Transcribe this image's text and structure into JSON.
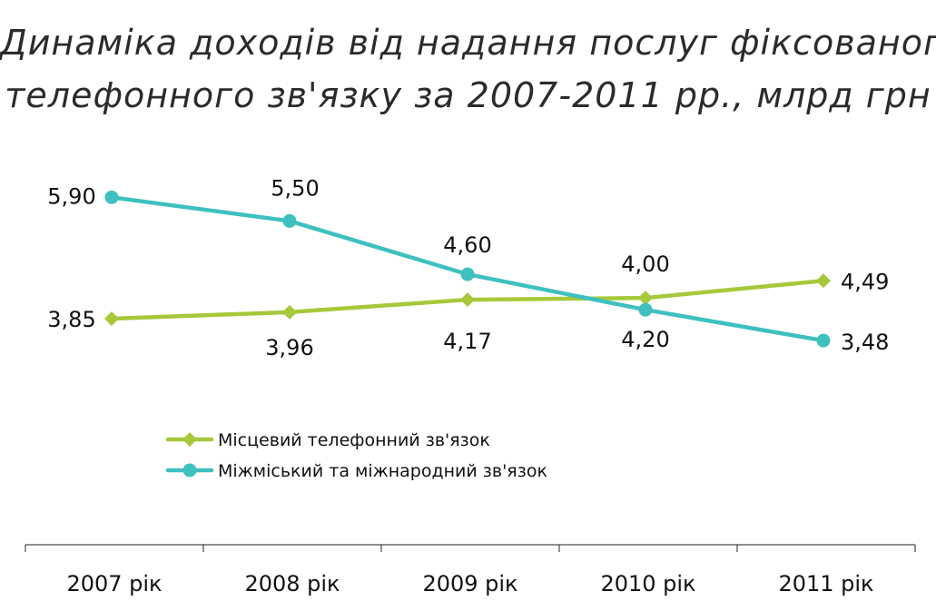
{
  "title_line1": "Динаміка доходів від надання послуг фіксованого",
  "title_line2": "телефонного зв'язку за 2007-2011 рр., млрд грн",
  "chart_data": {
    "type": "line",
    "categories": [
      "2007 рік",
      "2008 рік",
      "2009 рік",
      "2010 рік",
      "2011 рік"
    ],
    "series": [
      {
        "name": "Місцевий телефонний зв'язок",
        "values": [
          3.85,
          3.96,
          4.17,
          4.2,
          4.49
        ],
        "labels": [
          "3,85",
          "3,96",
          "4,17",
          "4,20",
          "4,49"
        ],
        "color": "#a6c83a",
        "marker": "diamond"
      },
      {
        "name": "Міжміський та міжнародний зв'язок",
        "values": [
          5.9,
          5.5,
          4.6,
          4.0,
          3.48
        ],
        "labels": [
          "5,90",
          "5,50",
          "4,60",
          "4,00",
          "3,48"
        ],
        "color": "#3fc0c0",
        "marker": "circle"
      }
    ],
    "legend_position": "bottom-center",
    "grid": false
  }
}
